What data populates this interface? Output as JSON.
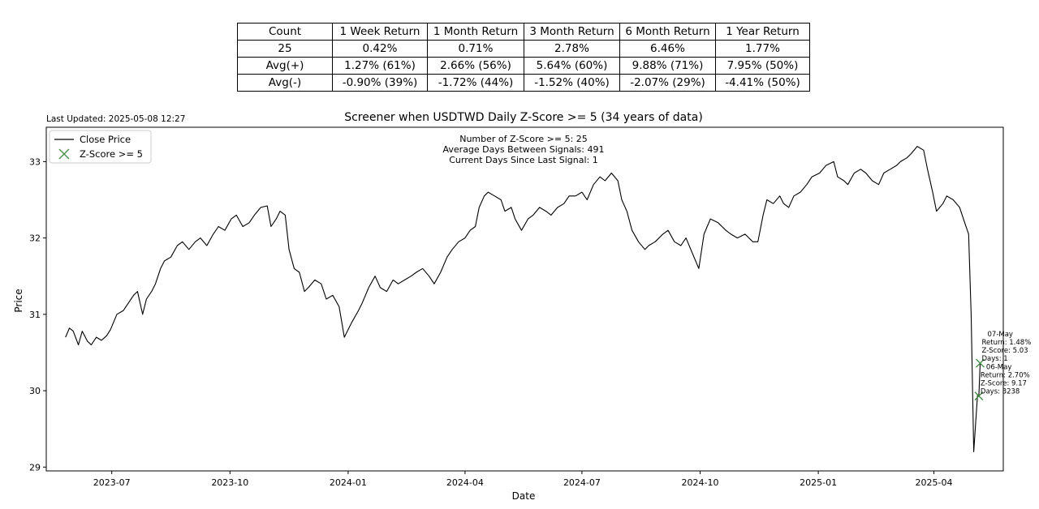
{
  "stats_table": {
    "headers": [
      "Count",
      "1 Week Return",
      "1 Month Return",
      "3 Month Return",
      "6 Month Return",
      "1 Year Return"
    ],
    "rows": [
      [
        "25",
        "0.42%",
        "0.71%",
        "2.78%",
        "6.46%",
        "1.77%"
      ],
      [
        "Avg(+)",
        "1.27% (61%)",
        "2.66% (56%)",
        "5.64% (60%)",
        "9.88% (71%)",
        "7.95% (50%)"
      ],
      [
        "Avg(-)",
        "-0.90% (39%)",
        "-1.72% (44%)",
        "-1.52% (40%)",
        "-2.07% (29%)",
        "-4.41% (50%)"
      ]
    ]
  },
  "last_updated": "Last Updated: 2025-05-08 12:27",
  "chart_data": {
    "type": "line",
    "title": "Screener when USDTWD Daily Z-Score >= 5 (34 years of data)",
    "xlabel": "Date",
    "ylabel": "Price",
    "ylim": [
      28.95,
      33.45
    ],
    "xlim": [
      "2023-05-11",
      "2025-05-25"
    ],
    "yticks": [
      29,
      30,
      31,
      32,
      33
    ],
    "xticks": [
      "2023-07",
      "2023-10",
      "2024-01",
      "2024-04",
      "2024-07",
      "2024-10",
      "2025-01",
      "2025-04"
    ],
    "legend": {
      "position": "upper-left",
      "entries": [
        "Close Price",
        "Z-Score >= 5"
      ]
    },
    "info_text": [
      "Number of Z-Score >= 5: 25",
      "Average Days Between Signals: 491",
      "Current Days Since Last Signal: 1"
    ],
    "series": [
      {
        "name": "Close Price",
        "color": "#000000",
        "points": [
          [
            "2023-05-26",
            30.7
          ],
          [
            "2023-05-29",
            30.82
          ],
          [
            "2023-06-01",
            30.78
          ],
          [
            "2023-06-05",
            30.6
          ],
          [
            "2023-06-08",
            30.78
          ],
          [
            "2023-06-12",
            30.65
          ],
          [
            "2023-06-15",
            30.6
          ],
          [
            "2023-06-19",
            30.7
          ],
          [
            "2023-06-23",
            30.66
          ],
          [
            "2023-06-27",
            30.72
          ],
          [
            "2023-06-30",
            30.8
          ],
          [
            "2023-07-05",
            31.0
          ],
          [
            "2023-07-10",
            31.05
          ],
          [
            "2023-07-14",
            31.15
          ],
          [
            "2023-07-18",
            31.25
          ],
          [
            "2023-07-21",
            31.3
          ],
          [
            "2023-07-25",
            31.0
          ],
          [
            "2023-07-28",
            31.2
          ],
          [
            "2023-08-01",
            31.3
          ],
          [
            "2023-08-04",
            31.4
          ],
          [
            "2023-08-08",
            31.6
          ],
          [
            "2023-08-11",
            31.7
          ],
          [
            "2023-08-16",
            31.75
          ],
          [
            "2023-08-21",
            31.9
          ],
          [
            "2023-08-25",
            31.95
          ],
          [
            "2023-08-30",
            31.85
          ],
          [
            "2023-09-04",
            31.95
          ],
          [
            "2023-09-08",
            32.0
          ],
          [
            "2023-09-13",
            31.9
          ],
          [
            "2023-09-18",
            32.05
          ],
          [
            "2023-09-22",
            32.15
          ],
          [
            "2023-09-27",
            32.1
          ],
          [
            "2023-10-02",
            32.25
          ],
          [
            "2023-10-06",
            32.3
          ],
          [
            "2023-10-11",
            32.15
          ],
          [
            "2023-10-16",
            32.2
          ],
          [
            "2023-10-20",
            32.3
          ],
          [
            "2023-10-25",
            32.4
          ],
          [
            "2023-10-30",
            32.42
          ],
          [
            "2023-11-02",
            32.15
          ],
          [
            "2023-11-06",
            32.25
          ],
          [
            "2023-11-09",
            32.35
          ],
          [
            "2023-11-13",
            32.3
          ],
          [
            "2023-11-16",
            31.85
          ],
          [
            "2023-11-20",
            31.6
          ],
          [
            "2023-11-24",
            31.55
          ],
          [
            "2023-11-28",
            31.3
          ],
          [
            "2023-12-01",
            31.35
          ],
          [
            "2023-12-06",
            31.45
          ],
          [
            "2023-12-11",
            31.4
          ],
          [
            "2023-12-15",
            31.2
          ],
          [
            "2023-12-20",
            31.25
          ],
          [
            "2023-12-25",
            31.1
          ],
          [
            "2023-12-29",
            30.7
          ],
          [
            "2024-01-04",
            30.9
          ],
          [
            "2024-01-09",
            31.05
          ],
          [
            "2024-01-12",
            31.15
          ],
          [
            "2024-01-17",
            31.35
          ],
          [
            "2024-01-22",
            31.5
          ],
          [
            "2024-01-26",
            31.35
          ],
          [
            "2024-01-31",
            31.3
          ],
          [
            "2024-02-05",
            31.45
          ],
          [
            "2024-02-09",
            31.4
          ],
          [
            "2024-02-14",
            31.45
          ],
          [
            "2024-02-19",
            31.5
          ],
          [
            "2024-02-23",
            31.55
          ],
          [
            "2024-02-28",
            31.6
          ],
          [
            "2024-03-04",
            31.5
          ],
          [
            "2024-03-08",
            31.4
          ],
          [
            "2024-03-13",
            31.55
          ],
          [
            "2024-03-18",
            31.75
          ],
          [
            "2024-03-22",
            31.85
          ],
          [
            "2024-03-27",
            31.95
          ],
          [
            "2024-04-01",
            32.0
          ],
          [
            "2024-04-05",
            32.1
          ],
          [
            "2024-04-09",
            32.15
          ],
          [
            "2024-04-12",
            32.4
          ],
          [
            "2024-04-16",
            32.55
          ],
          [
            "2024-04-19",
            32.6
          ],
          [
            "2024-04-24",
            32.55
          ],
          [
            "2024-04-29",
            32.5
          ],
          [
            "2024-05-02",
            32.35
          ],
          [
            "2024-05-07",
            32.4
          ],
          [
            "2024-05-10",
            32.25
          ],
          [
            "2024-05-15",
            32.1
          ],
          [
            "2024-05-20",
            32.25
          ],
          [
            "2024-05-24",
            32.3
          ],
          [
            "2024-05-29",
            32.4
          ],
          [
            "2024-06-03",
            32.35
          ],
          [
            "2024-06-07",
            32.3
          ],
          [
            "2024-06-12",
            32.4
          ],
          [
            "2024-06-17",
            32.45
          ],
          [
            "2024-06-21",
            32.55
          ],
          [
            "2024-06-26",
            32.55
          ],
          [
            "2024-07-01",
            32.6
          ],
          [
            "2024-07-05",
            32.5
          ],
          [
            "2024-07-10",
            32.7
          ],
          [
            "2024-07-15",
            32.8
          ],
          [
            "2024-07-19",
            32.75
          ],
          [
            "2024-07-24",
            32.85
          ],
          [
            "2024-07-29",
            32.75
          ],
          [
            "2024-08-01",
            32.5
          ],
          [
            "2024-08-05",
            32.35
          ],
          [
            "2024-08-09",
            32.1
          ],
          [
            "2024-08-14",
            31.95
          ],
          [
            "2024-08-19",
            31.85
          ],
          [
            "2024-08-22",
            31.9
          ],
          [
            "2024-08-27",
            31.95
          ],
          [
            "2024-09-02",
            32.05
          ],
          [
            "2024-09-06",
            32.1
          ],
          [
            "2024-09-11",
            31.95
          ],
          [
            "2024-09-16",
            31.9
          ],
          [
            "2024-09-20",
            32.0
          ],
          [
            "2024-09-25",
            31.8
          ],
          [
            "2024-09-30",
            31.6
          ],
          [
            "2024-10-04",
            32.05
          ],
          [
            "2024-10-09",
            32.25
          ],
          [
            "2024-10-15",
            32.2
          ],
          [
            "2024-10-21",
            32.1
          ],
          [
            "2024-10-25",
            32.05
          ],
          [
            "2024-10-30",
            32.0
          ],
          [
            "2024-11-05",
            32.05
          ],
          [
            "2024-11-11",
            31.95
          ],
          [
            "2024-11-15",
            31.95
          ],
          [
            "2024-11-19",
            32.3
          ],
          [
            "2024-11-22",
            32.5
          ],
          [
            "2024-11-27",
            32.45
          ],
          [
            "2024-12-02",
            32.55
          ],
          [
            "2024-12-05",
            32.45
          ],
          [
            "2024-12-09",
            32.4
          ],
          [
            "2024-12-13",
            32.55
          ],
          [
            "2024-12-18",
            32.6
          ],
          [
            "2024-12-23",
            32.7
          ],
          [
            "2024-12-27",
            32.8
          ],
          [
            "2025-01-02",
            32.85
          ],
          [
            "2025-01-07",
            32.95
          ],
          [
            "2025-01-13",
            33.0
          ],
          [
            "2025-01-16",
            32.8
          ],
          [
            "2025-01-21",
            32.75
          ],
          [
            "2025-01-24",
            32.7
          ],
          [
            "2025-01-29",
            32.85
          ],
          [
            "2025-02-03",
            32.9
          ],
          [
            "2025-02-07",
            32.85
          ],
          [
            "2025-02-12",
            32.75
          ],
          [
            "2025-02-17",
            32.7
          ],
          [
            "2025-02-21",
            32.85
          ],
          [
            "2025-02-26",
            32.9
          ],
          [
            "2025-03-03",
            32.95
          ],
          [
            "2025-03-06",
            33.0
          ],
          [
            "2025-03-11",
            33.05
          ],
          [
            "2025-03-14",
            33.1
          ],
          [
            "2025-03-19",
            33.2
          ],
          [
            "2025-03-24",
            33.15
          ],
          [
            "2025-03-27",
            32.9
          ],
          [
            "2025-03-31",
            32.6
          ],
          [
            "2025-04-03",
            32.35
          ],
          [
            "2025-04-08",
            32.45
          ],
          [
            "2025-04-11",
            32.55
          ],
          [
            "2025-04-16",
            32.5
          ],
          [
            "2025-04-21",
            32.4
          ],
          [
            "2025-04-25",
            32.2
          ],
          [
            "2025-04-28",
            32.05
          ],
          [
            "2025-04-30",
            31.0
          ],
          [
            "2025-05-02",
            29.2
          ],
          [
            "2025-05-05",
            29.95
          ],
          [
            "2025-05-06",
            29.93
          ],
          [
            "2025-05-07",
            30.36
          ]
        ]
      },
      {
        "name": "Z-Score >= 5",
        "marker": "x",
        "color": "#4a8f4a",
        "points": [
          [
            "2025-05-06",
            29.93
          ],
          [
            "2025-05-07",
            30.36
          ]
        ]
      }
    ],
    "annotations": [
      {
        "date": "2025-05-07",
        "lines": [
          "07-May",
          "Return: 1.48%",
          "Z-Score: 5.03",
          "Days: 1"
        ]
      },
      {
        "date": "2025-05-06",
        "lines": [
          "06-May",
          "Return: 2.70%",
          "Z-Score: 9.17",
          "Days: 3238"
        ]
      }
    ]
  }
}
